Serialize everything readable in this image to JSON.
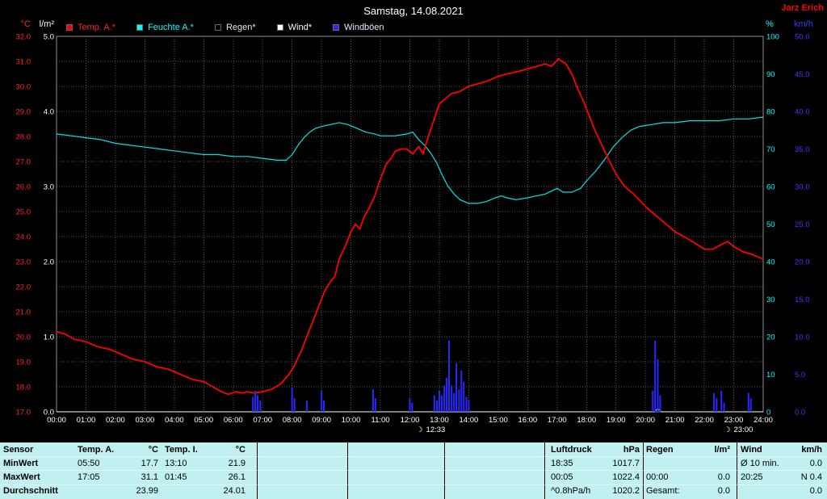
{
  "header": {
    "title": "Samstag, 14.08.2021",
    "station": "Jarz Erich"
  },
  "units": {
    "temp": "°C",
    "rain": "l/m²",
    "humidity": "%",
    "wind": "km/h"
  },
  "legend": [
    {
      "label": "Temp. A.*",
      "swatch": "#ff0000",
      "text_color": "#ff2020",
      "icon": "temp-swatch-icon"
    },
    {
      "label": "Feuchte A.*",
      "swatch": "#00ffff",
      "text_color": "#00ffff",
      "icon": "humidity-swatch-icon"
    },
    {
      "label": "Regen*",
      "swatch": "#000000",
      "text_color": "#e8e8e8",
      "icon": "rain-swatch-icon"
    },
    {
      "label": "Wind*",
      "swatch": "#ffffff",
      "text_color": "#ffffff",
      "icon": "wind-swatch-icon"
    },
    {
      "label": "Windböen",
      "swatch": "#2828ff",
      "text_color": "#e8e8ff",
      "icon": "gust-swatch-icon"
    }
  ],
  "chart_data": {
    "type": "line",
    "title": "Samstag, 14.08.2021",
    "x_range": [
      0,
      24
    ],
    "x_ticks": [
      "00:00",
      "01:00",
      "02:00",
      "03:00",
      "04:00",
      "05:00",
      "06:00",
      "07:00",
      "08:00",
      "09:00",
      "10:00",
      "11:00",
      "12:00",
      "13:00",
      "14:00",
      "15:00",
      "16:00",
      "17:00",
      "18:00",
      "19:00",
      "20:00",
      "21:00",
      "22:00",
      "23:00",
      "24:00"
    ],
    "axes": {
      "temp": {
        "label": "°C",
        "color": "#ff2020",
        "min": 17,
        "max": 32,
        "step": 1,
        "decimals": 1
      },
      "rain": {
        "label": "l/m²",
        "color": "#ffffff",
        "min": 0,
        "max": 5,
        "step": 1,
        "decimals": 1
      },
      "humidity": {
        "label": "%",
        "color": "#00ffff",
        "min": 0,
        "max": 100,
        "step": 10,
        "decimals": 0
      },
      "wind": {
        "label": "km/h",
        "color": "#3a3aff",
        "min": 0,
        "max": 50,
        "step": 5,
        "decimals": 1
      }
    },
    "series": [
      {
        "name": "Feuchte A.*",
        "color": "#00e5e5",
        "axis": "humidity",
        "style": "line",
        "width": 1.2,
        "points": [
          [
            0,
            74
          ],
          [
            0.5,
            73.5
          ],
          [
            1,
            73
          ],
          [
            1.5,
            72.5
          ],
          [
            2,
            71.5
          ],
          [
            2.5,
            71
          ],
          [
            3,
            70.5
          ],
          [
            3.5,
            70
          ],
          [
            4,
            69.5
          ],
          [
            4.5,
            69
          ],
          [
            5,
            68.5
          ],
          [
            5.5,
            68.5
          ],
          [
            6,
            68
          ],
          [
            6.5,
            68
          ],
          [
            7,
            67.5
          ],
          [
            7.5,
            67
          ],
          [
            7.8,
            67
          ],
          [
            8,
            68.5
          ],
          [
            8.2,
            71
          ],
          [
            8.4,
            73
          ],
          [
            8.6,
            74.5
          ],
          [
            8.8,
            75.5
          ],
          [
            9,
            76
          ],
          [
            9.3,
            76.5
          ],
          [
            9.6,
            77
          ],
          [
            9.9,
            76.5
          ],
          [
            10.2,
            75.5
          ],
          [
            10.5,
            74.5
          ],
          [
            10.8,
            74
          ],
          [
            11,
            73.5
          ],
          [
            11.5,
            73.5
          ],
          [
            11.9,
            74
          ],
          [
            12.1,
            74.5
          ],
          [
            12.3,
            72.5
          ],
          [
            12.5,
            71
          ],
          [
            12.7,
            69
          ],
          [
            12.9,
            66.5
          ],
          [
            13.1,
            63
          ],
          [
            13.3,
            60
          ],
          [
            13.5,
            58
          ],
          [
            13.7,
            56.5
          ],
          [
            14,
            55.5
          ],
          [
            14.3,
            55.5
          ],
          [
            14.6,
            56
          ],
          [
            14.9,
            57
          ],
          [
            15.1,
            57.5
          ],
          [
            15.3,
            57
          ],
          [
            15.6,
            56.5
          ],
          [
            16,
            57
          ],
          [
            16.3,
            57.5
          ],
          [
            16.6,
            58
          ],
          [
            17,
            59.5
          ],
          [
            17.2,
            58.5
          ],
          [
            17.5,
            58.5
          ],
          [
            17.8,
            59.5
          ],
          [
            18,
            61.5
          ],
          [
            18.3,
            64
          ],
          [
            18.6,
            67
          ],
          [
            18.9,
            70.5
          ],
          [
            19.2,
            73
          ],
          [
            19.5,
            75
          ],
          [
            19.8,
            76
          ],
          [
            20.2,
            76.5
          ],
          [
            20.6,
            77
          ],
          [
            21,
            77
          ],
          [
            21.5,
            77.5
          ],
          [
            22,
            77.5
          ],
          [
            22.5,
            77.5
          ],
          [
            23,
            78
          ],
          [
            23.5,
            78
          ],
          [
            24,
            78.5
          ]
        ]
      },
      {
        "name": "Temp. A.*",
        "color": "#ff0000",
        "axis": "temp",
        "style": "line",
        "width": 1.8,
        "points": [
          [
            0,
            20.2
          ],
          [
            0.3,
            20.1
          ],
          [
            0.6,
            19.9
          ],
          [
            1,
            19.8
          ],
          [
            1.4,
            19.6
          ],
          [
            1.8,
            19.5
          ],
          [
            2.2,
            19.3
          ],
          [
            2.6,
            19.1
          ],
          [
            3,
            19
          ],
          [
            3.4,
            18.8
          ],
          [
            3.8,
            18.7
          ],
          [
            4.2,
            18.5
          ],
          [
            4.6,
            18.3
          ],
          [
            5,
            18.2
          ],
          [
            5.3,
            18
          ],
          [
            5.6,
            17.8
          ],
          [
            5.83,
            17.7
          ],
          [
            6.1,
            17.8
          ],
          [
            6.3,
            17.75
          ],
          [
            6.5,
            17.8
          ],
          [
            6.7,
            17.75
          ],
          [
            7,
            17.8
          ],
          [
            7.3,
            17.9
          ],
          [
            7.6,
            18.1
          ],
          [
            7.9,
            18.5
          ],
          [
            8.1,
            18.9
          ],
          [
            8.3,
            19.4
          ],
          [
            8.5,
            20
          ],
          [
            8.7,
            20.6
          ],
          [
            8.9,
            21.2
          ],
          [
            9.1,
            21.8
          ],
          [
            9.3,
            22.2
          ],
          [
            9.45,
            22.4
          ],
          [
            9.6,
            23.1
          ],
          [
            9.8,
            23.6
          ],
          [
            10,
            24.2
          ],
          [
            10.15,
            24.5
          ],
          [
            10.3,
            24.3
          ],
          [
            10.45,
            24.8
          ],
          [
            10.6,
            25.1
          ],
          [
            10.8,
            25.6
          ],
          [
            11,
            26.3
          ],
          [
            11.2,
            26.9
          ],
          [
            11.35,
            27.1
          ],
          [
            11.5,
            27.4
          ],
          [
            11.7,
            27.5
          ],
          [
            11.9,
            27.5
          ],
          [
            12.1,
            27.3
          ],
          [
            12.3,
            27.6
          ],
          [
            12.45,
            27.3
          ],
          [
            12.6,
            27.9
          ],
          [
            12.8,
            28.6
          ],
          [
            13,
            29.3
          ],
          [
            13.2,
            29.5
          ],
          [
            13.4,
            29.7
          ],
          [
            13.7,
            29.8
          ],
          [
            14,
            30
          ],
          [
            14.3,
            30.1
          ],
          [
            14.6,
            30.2
          ],
          [
            15,
            30.4
          ],
          [
            15.3,
            30.5
          ],
          [
            15.7,
            30.6
          ],
          [
            16,
            30.7
          ],
          [
            16.3,
            30.8
          ],
          [
            16.6,
            30.9
          ],
          [
            16.8,
            30.8
          ],
          [
            17.05,
            31.1
          ],
          [
            17.3,
            30.9
          ],
          [
            17.5,
            30.5
          ],
          [
            17.7,
            29.9
          ],
          [
            17.9,
            29.4
          ],
          [
            18.1,
            28.8
          ],
          [
            18.3,
            28.2
          ],
          [
            18.5,
            27.7
          ],
          [
            18.7,
            27.2
          ],
          [
            19,
            26.5
          ],
          [
            19.3,
            26
          ],
          [
            19.6,
            25.7
          ],
          [
            20,
            25.2
          ],
          [
            20.3,
            24.9
          ],
          [
            20.6,
            24.6
          ],
          [
            21,
            24.2
          ],
          [
            21.3,
            24
          ],
          [
            21.6,
            23.8
          ],
          [
            22,
            23.5
          ],
          [
            22.3,
            23.5
          ],
          [
            22.6,
            23.7
          ],
          [
            22.8,
            23.8
          ],
          [
            23,
            23.6
          ],
          [
            23.3,
            23.4
          ],
          [
            23.6,
            23.3
          ],
          [
            24,
            23.1
          ]
        ]
      },
      {
        "name": "Regen*",
        "color": "#000000",
        "axis": "rain",
        "style": "line",
        "width": 1,
        "points": []
      },
      {
        "name": "Wind*",
        "color": "#ffffff",
        "axis": "wind",
        "style": "line",
        "width": 1,
        "points": [
          [
            0,
            0
          ],
          [
            20.3,
            0
          ],
          [
            20.42,
            0.4
          ],
          [
            20.55,
            0
          ],
          [
            24,
            0
          ]
        ]
      },
      {
        "name": "Windböen",
        "color": "#2828ff",
        "axis": "wind",
        "style": "spikes",
        "width": 2,
        "points": [
          [
            6.67,
            2
          ],
          [
            6.75,
            2.8
          ],
          [
            6.83,
            2.2
          ],
          [
            6.92,
            1.5
          ],
          [
            8,
            3.2
          ],
          [
            8.08,
            1.8
          ],
          [
            8.5,
            1.5
          ],
          [
            9,
            2.8
          ],
          [
            9.08,
            1.5
          ],
          [
            10.75,
            3
          ],
          [
            10.83,
            1.8
          ],
          [
            12,
            1.8
          ],
          [
            12.08,
            1.2
          ],
          [
            12.83,
            2.2
          ],
          [
            12.92,
            1.5
          ],
          [
            13,
            2.8
          ],
          [
            13.08,
            2.2
          ],
          [
            13.17,
            3.5
          ],
          [
            13.25,
            4.5
          ],
          [
            13.33,
            9.5
          ],
          [
            13.42,
            3.5
          ],
          [
            13.5,
            2.5
          ],
          [
            13.58,
            6.5
          ],
          [
            13.67,
            3
          ],
          [
            13.75,
            5.5
          ],
          [
            13.83,
            4
          ],
          [
            13.92,
            2
          ],
          [
            14,
            1.5
          ],
          [
            20.25,
            2.8
          ],
          [
            20.33,
            9.5
          ],
          [
            20.42,
            7
          ],
          [
            20.5,
            2.2
          ],
          [
            22.33,
            2.5
          ],
          [
            22.42,
            1.8
          ],
          [
            22.58,
            2.8
          ],
          [
            22.67,
            1.2
          ],
          [
            23.5,
            2.5
          ],
          [
            23.58,
            1.8
          ]
        ]
      }
    ],
    "sun_moon_markers": [
      {
        "t": 12.55,
        "label": "12:33"
      },
      {
        "t": 23.0,
        "label": "23:00"
      }
    ]
  },
  "summary": {
    "row_labels": [
      "Sensor",
      "MinWert",
      "MaxWert",
      "Durchschnitt"
    ],
    "temp_a": [
      [
        "Temp. A.",
        "°C"
      ],
      [
        "05:50",
        "17.7"
      ],
      [
        "17:05",
        "31.1"
      ],
      [
        "",
        "23.99"
      ]
    ],
    "temp_i": [
      [
        "Temp. I.",
        "°C"
      ],
      [
        "13:10",
        "21.9"
      ],
      [
        "01:45",
        "26.1"
      ],
      [
        "",
        "24.01"
      ]
    ],
    "luftdruck": [
      [
        "Luftdruck",
        "hPa"
      ],
      [
        "18:35",
        "1017.7"
      ],
      [
        "00:05",
        "1022.4"
      ],
      [
        "^0.8hPa/h",
        "1020.2"
      ]
    ],
    "regen": [
      [
        "Regen",
        "l/m²"
      ],
      [
        "",
        ""
      ],
      [
        "00:00",
        "0.0"
      ],
      [
        "Gesamt:",
        "0.0"
      ]
    ],
    "wind": [
      [
        "Wind",
        "km/h"
      ],
      [
        "Ø 10 min.",
        "0.0"
      ],
      [
        "20:25",
        "N 0.4"
      ],
      [
        "",
        "0.0"
      ]
    ]
  }
}
